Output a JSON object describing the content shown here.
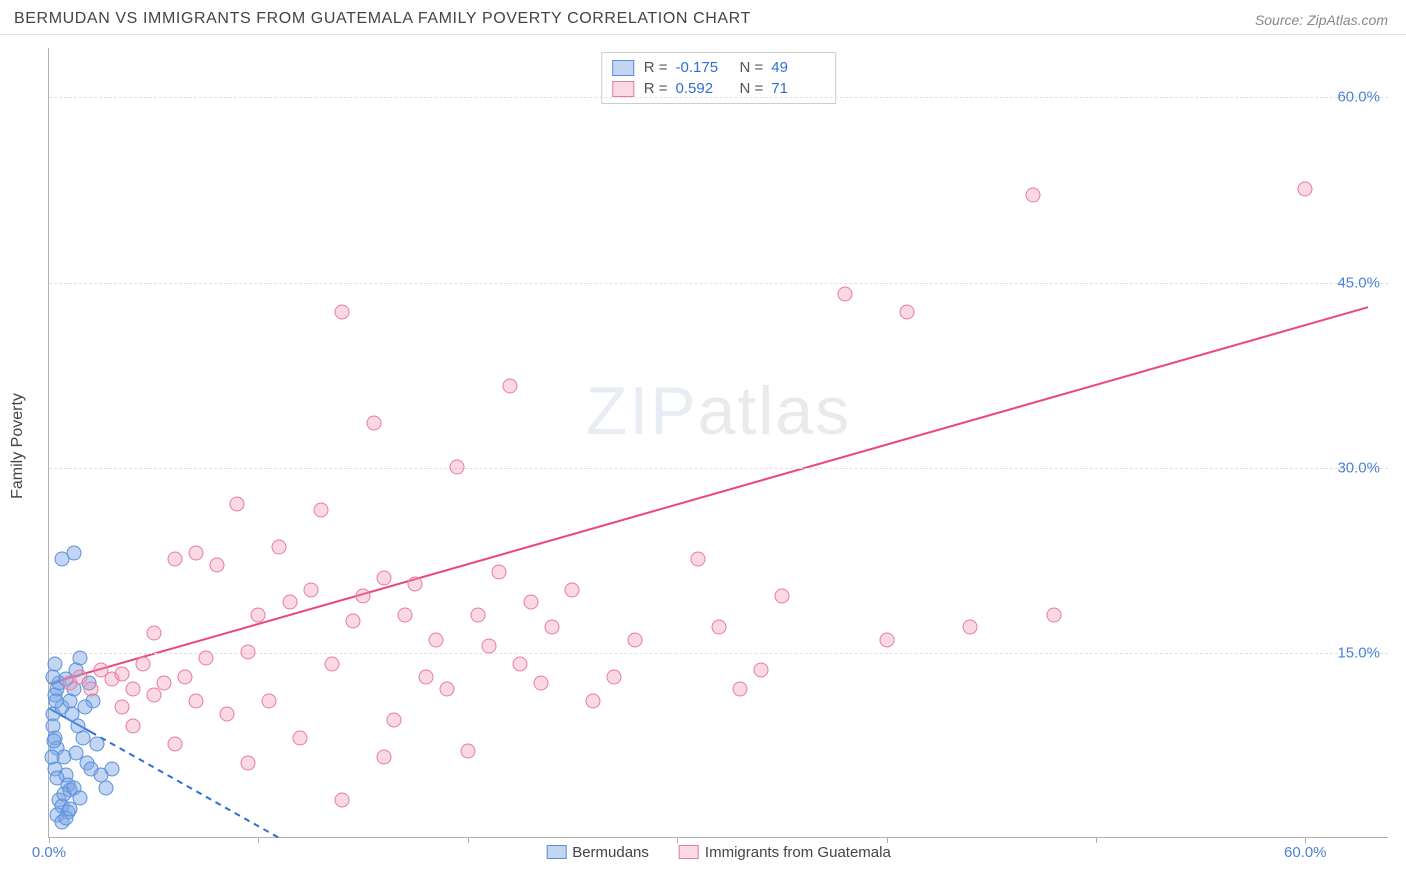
{
  "title": "BERMUDAN VS IMMIGRANTS FROM GUATEMALA FAMILY POVERTY CORRELATION CHART",
  "source": "Source: ZipAtlas.com",
  "ylabel": "Family Poverty",
  "watermark_a": "ZIP",
  "watermark_b": "atlas",
  "chart": {
    "type": "scatter",
    "xlim": [
      0,
      64
    ],
    "ylim": [
      0,
      64
    ],
    "xticks": [
      0,
      10,
      20,
      30,
      40,
      50,
      60
    ],
    "xtick_labels": {
      "0": "0.0%",
      "60": "60.0%"
    },
    "yticks": [
      15,
      30,
      45,
      60
    ],
    "ytick_labels": {
      "15": "15.0%",
      "30": "30.0%",
      "45": "45.0%",
      "60": "60.0%"
    },
    "grid_color": "#e0e0e0",
    "axis_color": "#b0b0b0",
    "background": "#ffffff",
    "marker_size": 15,
    "series": [
      {
        "name": "Bermudans",
        "fill": "rgba(120,165,230,0.45)",
        "stroke": "#5a8fd8",
        "trend": {
          "x1": 0,
          "y1": 10.5,
          "x2": 11,
          "y2": 0,
          "dash_from_x": 2.0,
          "color": "#2f6fd1",
          "width": 2
        },
        "R": "-0.175",
        "N": "49",
        "points": [
          [
            0.2,
            10.0
          ],
          [
            0.3,
            11.5
          ],
          [
            0.4,
            12.0
          ],
          [
            0.5,
            12.5
          ],
          [
            0.2,
            9.0
          ],
          [
            0.6,
            10.5
          ],
          [
            0.3,
            8.0
          ],
          [
            0.4,
            7.2
          ],
          [
            0.7,
            6.5
          ],
          [
            0.8,
            5.0
          ],
          [
            0.9,
            4.2
          ],
          [
            1.0,
            3.8
          ],
          [
            0.5,
            3.0
          ],
          [
            0.6,
            2.5
          ],
          [
            1.0,
            11.0
          ],
          [
            1.2,
            12.0
          ],
          [
            1.3,
            13.5
          ],
          [
            1.5,
            14.5
          ],
          [
            0.2,
            13.0
          ],
          [
            0.3,
            14.0
          ],
          [
            0.8,
            12.8
          ],
          [
            1.1,
            10.0
          ],
          [
            1.4,
            9.0
          ],
          [
            1.6,
            8.0
          ],
          [
            1.8,
            6.0
          ],
          [
            2.0,
            5.5
          ],
          [
            0.9,
            2.0
          ],
          [
            0.7,
            3.5
          ],
          [
            1.2,
            4.0
          ],
          [
            1.3,
            6.8
          ],
          [
            0.3,
            5.5
          ],
          [
            0.4,
            4.8
          ],
          [
            1.9,
            12.5
          ],
          [
            2.1,
            11.0
          ],
          [
            2.3,
            7.5
          ],
          [
            2.5,
            5.0
          ],
          [
            2.7,
            4.0
          ],
          [
            3.0,
            5.5
          ],
          [
            0.6,
            22.5
          ],
          [
            1.2,
            23.0
          ],
          [
            0.4,
            1.8
          ],
          [
            0.6,
            1.2
          ],
          [
            0.8,
            1.5
          ],
          [
            1.0,
            2.3
          ],
          [
            1.5,
            3.2
          ],
          [
            1.7,
            10.5
          ],
          [
            0.15,
            6.5
          ],
          [
            0.25,
            7.8
          ],
          [
            0.35,
            11.0
          ]
        ]
      },
      {
        "name": "Immigrants from Guatemala",
        "fill": "rgba(240,145,175,0.35)",
        "stroke": "#e87ba0",
        "trend": {
          "x1": 0,
          "y1": 12.5,
          "x2": 63,
          "y2": 43.0,
          "dash_from_x": 999,
          "color": "#e84a7a",
          "width": 2
        },
        "R": "0.592",
        "N": "71",
        "points": [
          [
            1.0,
            12.5
          ],
          [
            1.5,
            13.0
          ],
          [
            2.0,
            12.0
          ],
          [
            2.5,
            13.5
          ],
          [
            3.0,
            12.8
          ],
          [
            3.5,
            13.2
          ],
          [
            4.0,
            12.0
          ],
          [
            4.5,
            14.0
          ],
          [
            5.0,
            11.5
          ],
          [
            5.5,
            12.5
          ],
          [
            6.0,
            22.5
          ],
          [
            6.5,
            13.0
          ],
          [
            7.0,
            23.0
          ],
          [
            7.5,
            14.5
          ],
          [
            8.0,
            22.0
          ],
          [
            8.5,
            10.0
          ],
          [
            9.0,
            27.0
          ],
          [
            9.5,
            15.0
          ],
          [
            10.0,
            18.0
          ],
          [
            10.5,
            11.0
          ],
          [
            11.0,
            23.5
          ],
          [
            11.5,
            19.0
          ],
          [
            12.0,
            8.0
          ],
          [
            12.5,
            20.0
          ],
          [
            13.0,
            26.5
          ],
          [
            13.5,
            14.0
          ],
          [
            14.0,
            42.5
          ],
          [
            14.5,
            17.5
          ],
          [
            15.0,
            19.5
          ],
          [
            15.5,
            33.5
          ],
          [
            16.0,
            21.0
          ],
          [
            16.5,
            9.5
          ],
          [
            17.0,
            18.0
          ],
          [
            17.5,
            20.5
          ],
          [
            18.0,
            13.0
          ],
          [
            18.5,
            16.0
          ],
          [
            19.0,
            12.0
          ],
          [
            19.5,
            30.0
          ],
          [
            20.0,
            7.0
          ],
          [
            20.5,
            18.0
          ],
          [
            21.0,
            15.5
          ],
          [
            21.5,
            21.5
          ],
          [
            22.0,
            36.5
          ],
          [
            22.5,
            14.0
          ],
          [
            23.0,
            19.0
          ],
          [
            23.5,
            12.5
          ],
          [
            24.0,
            17.0
          ],
          [
            25.0,
            20.0
          ],
          [
            26.0,
            11.0
          ],
          [
            27.0,
            13.0
          ],
          [
            28.0,
            16.0
          ],
          [
            14.0,
            3.0
          ],
          [
            16.0,
            6.5
          ],
          [
            9.5,
            6.0
          ],
          [
            6.0,
            7.5
          ],
          [
            31.0,
            22.5
          ],
          [
            32.0,
            17.0
          ],
          [
            33.0,
            12.0
          ],
          [
            34.0,
            13.5
          ],
          [
            35.0,
            19.5
          ],
          [
            38.0,
            44.0
          ],
          [
            40.0,
            16.0
          ],
          [
            41.0,
            42.5
          ],
          [
            44.0,
            17.0
          ],
          [
            47.0,
            52.0
          ],
          [
            48.0,
            18.0
          ],
          [
            60.0,
            52.5
          ],
          [
            4.0,
            9.0
          ],
          [
            5.0,
            16.5
          ],
          [
            7.0,
            11.0
          ],
          [
            3.5,
            10.5
          ]
        ]
      }
    ]
  },
  "legend": {
    "bottom": [
      {
        "label": "Bermudans"
      },
      {
        "label": "Immigrants from Guatemala"
      }
    ]
  }
}
